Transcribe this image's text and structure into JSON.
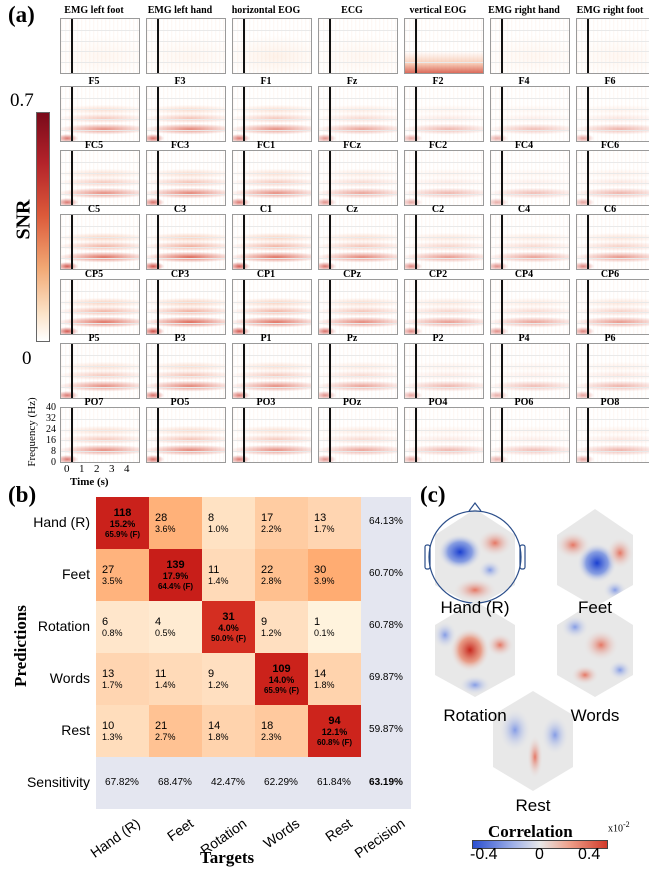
{
  "panel_a": {
    "label": "(a)",
    "colorbar": {
      "max_label": "0.7",
      "min_label": "0",
      "title": "SNR"
    },
    "rows": [
      [
        "EMG left foot",
        "EMG left hand",
        "horizontal EOG",
        "ECG",
        "vertical EOG",
        "EMG right hand",
        "EMG right foot"
      ],
      [
        "F5",
        "F3",
        "F1",
        "Fz",
        "F2",
        "F4",
        "F6"
      ],
      [
        "FC5",
        "FC3",
        "FC1",
        "FCz",
        "FC2",
        "FC4",
        "FC6"
      ],
      [
        "C5",
        "C3",
        "C1",
        "Cz",
        "C2",
        "C4",
        "C6"
      ],
      [
        "CP5",
        "CP3",
        "CP1",
        "CPz",
        "CP2",
        "CP4",
        "CP6"
      ],
      [
        "P5",
        "P3",
        "P1",
        "Pz",
        "P2",
        "P4",
        "P6"
      ],
      [
        "PO7",
        "PO5",
        "PO3",
        "POz",
        "PO4",
        "PO6",
        "PO8"
      ]
    ],
    "y_axis": {
      "label": "Frequency (Hz)",
      "ticks": [
        "40",
        "32",
        "24",
        "16",
        "8",
        "0"
      ]
    },
    "x_axis": {
      "label": "Time (s)",
      "ticks": [
        "0",
        "1",
        "2",
        "3",
        "4"
      ]
    }
  },
  "panel_b": {
    "label": "(b)",
    "y_title": "Predictions",
    "x_title": "Targets",
    "row_labels": [
      "Hand (R)",
      "Feet",
      "Rotation",
      "Words",
      "Rest"
    ],
    "col_labels": [
      "Hand (R)",
      "Feet",
      "Rotation",
      "Words",
      "Rest",
      "Precision"
    ],
    "matrix": [
      [
        {
          "n": "118",
          "pct": "15.2%",
          "diag": "65.9% (F)"
        },
        {
          "n": "28",
          "pct": "3.6%"
        },
        {
          "n": "8",
          "pct": "1.0%"
        },
        {
          "n": "17",
          "pct": "2.2%"
        },
        {
          "n": "13",
          "pct": "1.7%"
        }
      ],
      [
        {
          "n": "27",
          "pct": "3.5%"
        },
        {
          "n": "139",
          "pct": "17.9%",
          "diag": "64.4% (F)"
        },
        {
          "n": "11",
          "pct": "1.4%"
        },
        {
          "n": "22",
          "pct": "2.8%"
        },
        {
          "n": "30",
          "pct": "3.9%"
        }
      ],
      [
        {
          "n": "6",
          "pct": "0.8%"
        },
        {
          "n": "4",
          "pct": "0.5%"
        },
        {
          "n": "31",
          "pct": "4.0%",
          "diag": "50.0% (F)"
        },
        {
          "n": "9",
          "pct": "1.2%"
        },
        {
          "n": "1",
          "pct": "0.1%"
        }
      ],
      [
        {
          "n": "13",
          "pct": "1.7%"
        },
        {
          "n": "11",
          "pct": "1.4%"
        },
        {
          "n": "9",
          "pct": "1.2%"
        },
        {
          "n": "109",
          "pct": "14.0%",
          "diag": "65.9% (F)"
        },
        {
          "n": "14",
          "pct": "1.8%"
        }
      ],
      [
        {
          "n": "10",
          "pct": "1.3%"
        },
        {
          "n": "21",
          "pct": "2.7%"
        },
        {
          "n": "14",
          "pct": "1.8%"
        },
        {
          "n": "18",
          "pct": "2.3%"
        },
        {
          "n": "94",
          "pct": "12.1%",
          "diag": "60.8% (F)"
        }
      ]
    ],
    "precision": [
      "64.13%",
      "60.70%",
      "60.78%",
      "69.87%",
      "59.87%"
    ],
    "sensitivity_label": "Sensitivity",
    "sensitivity": [
      "67.82%",
      "68.47%",
      "42.47%",
      "62.29%",
      "61.84%"
    ],
    "overall": "63.19%"
  },
  "panel_c": {
    "label": "(c)",
    "topomaps": [
      "Hand (R)",
      "Feet",
      "Rotation",
      "Words",
      "Rest"
    ],
    "colorbar": {
      "title": "Correlation",
      "ticks": [
        "-0.4",
        "0",
        "0.4"
      ],
      "exponent": "x10",
      "exponent_power": "-2"
    },
    "colors": {
      "negative": "#2b4fd0",
      "neutral": "#e8e8e8",
      "positive": "#d23a2a"
    }
  }
}
